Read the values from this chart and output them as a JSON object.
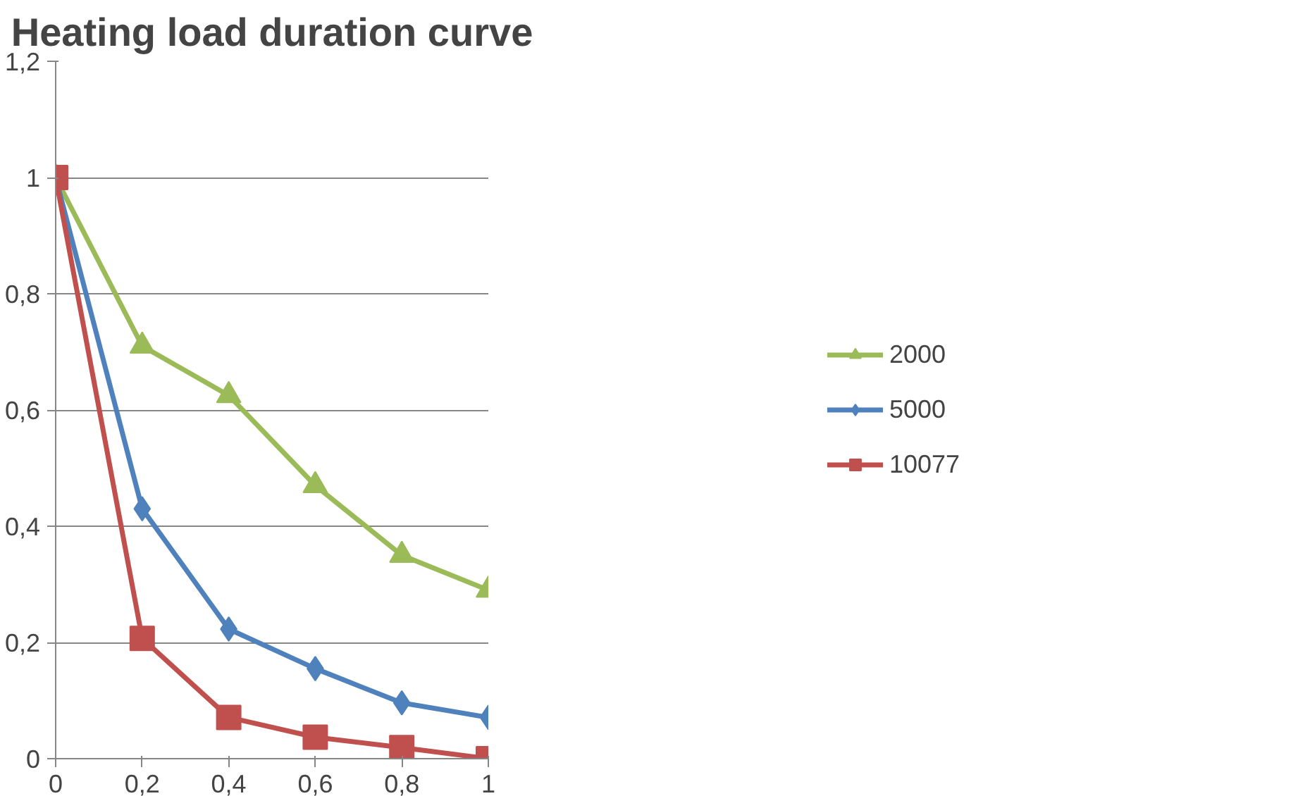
{
  "chart_data": {
    "type": "line",
    "title": "Heating load duration curve",
    "x": [
      0,
      0.2,
      0.4,
      0.6,
      0.8,
      1
    ],
    "series": [
      {
        "name": "2000",
        "color": "#9bbb59",
        "marker": "triangle",
        "values": [
          1,
          0.71,
          0.625,
          0.47,
          0.35,
          0.29
        ]
      },
      {
        "name": "5000",
        "color": "#4f81bd",
        "marker": "diamond",
        "values": [
          1,
          0.43,
          0.223,
          0.155,
          0.096,
          0.071
        ]
      },
      {
        "name": "10077",
        "color": "#c0504d",
        "marker": "square",
        "values": [
          1,
          0.207,
          0.071,
          0.037,
          0.019,
          0
        ]
      }
    ],
    "xlim": [
      0,
      1
    ],
    "xticks": [
      0,
      {
        "value": 0.2,
        "label": "0,2"
      },
      {
        "value": 0.4,
        "label": "0,4"
      },
      {
        "value": 0.6,
        "label": "0,6"
      },
      {
        "value": 0.8,
        "label": "0,8"
      },
      1
    ],
    "ylim": [
      0,
      1.2
    ],
    "yticks": [
      0,
      {
        "value": 0.2,
        "label": "0,2"
      },
      {
        "value": 0.4,
        "label": "0,4"
      },
      {
        "value": 0.6,
        "label": "0,6"
      },
      {
        "value": 0.8,
        "label": "0,8"
      },
      1,
      {
        "value": 1.2,
        "label": "1,2"
      }
    ],
    "grid": "y",
    "legend": "right",
    "line_style": "solid"
  }
}
